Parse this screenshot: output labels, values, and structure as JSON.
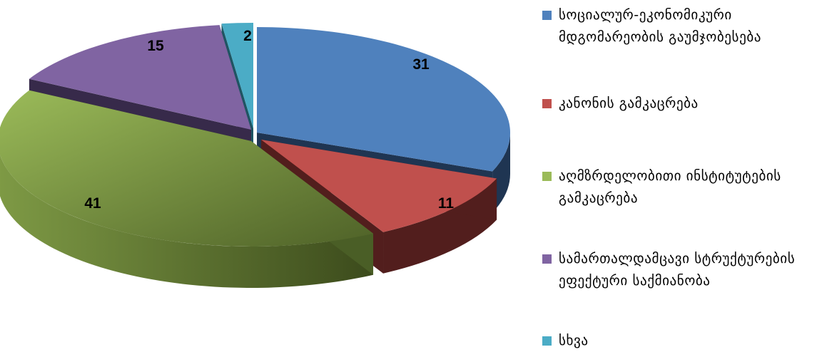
{
  "chart_data": {
    "type": "pie",
    "title": "",
    "slices": [
      {
        "label": "სოციალურ-ეკონომიკური მდგომარეობის გაუმჯობესება",
        "value": 31,
        "color": "#4F81BD",
        "side": "#1F3552",
        "exploded": false
      },
      {
        "label": "კანონის გამკაცრება",
        "value": 11,
        "color": "#C0504D",
        "side": "#521E1D",
        "exploded": true
      },
      {
        "label": "აღმზრდელობითი ინსტიტუტების გამკაცრება",
        "value": 41,
        "color": "#9BBB59",
        "side": "#4A5E26",
        "exploded": false
      },
      {
        "label": "სამართალდამცავი სტრუქტურების ეფექტური საქმიანობა",
        "value": 15,
        "color": "#8064A2",
        "side": "#372A4A",
        "exploded": false
      },
      {
        "label": "სხვა",
        "value": 2,
        "color": "#4BACC6",
        "side": "#1E5563",
        "exploded": false
      }
    ],
    "legend_position": "right"
  }
}
